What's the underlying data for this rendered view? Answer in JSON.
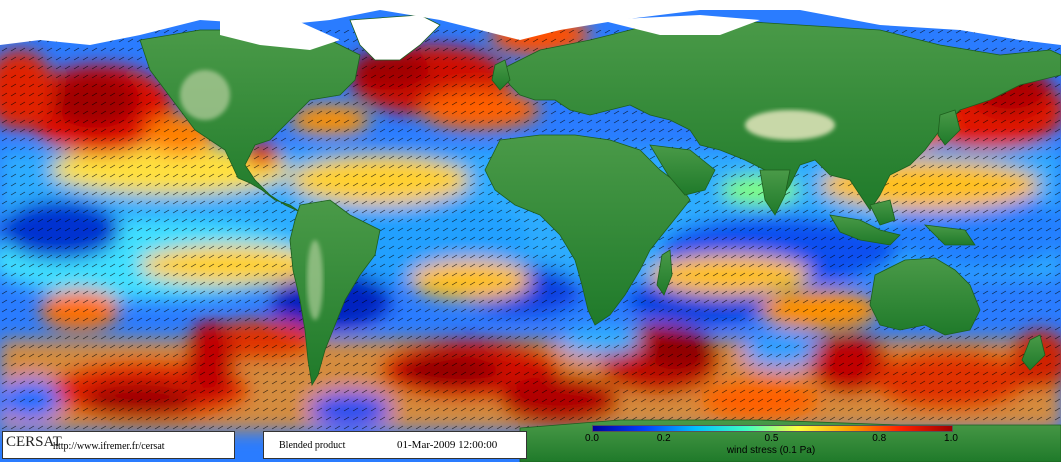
{
  "logo": {
    "name": "CERSAT",
    "url": "http://www.ifremer.fr/cersat"
  },
  "product": {
    "label": "Blended product",
    "date": "01-Mar-2009 12:00:00"
  },
  "colorbar": {
    "ticks": [
      "0.0",
      "0.2",
      "0.5",
      "0.8",
      "1.0"
    ],
    "tick_values": [
      0.0,
      0.2,
      0.5,
      0.8,
      1.0
    ],
    "min": 0.0,
    "max": 1.0,
    "label": "wind stress (0.1 Pa)",
    "colors": [
      "#0000a0",
      "#0040ff",
      "#00c0ff",
      "#40ffc0",
      "#ffff40",
      "#ffa000",
      "#ff2000",
      "#a00000"
    ]
  },
  "map": {
    "ocean_low_color": "#1030e0",
    "ocean_mid_color": "#30c8ff",
    "ocean_high_color": "#ffd020",
    "ocean_max_color": "#c00000",
    "land_color": "#2f8a2f",
    "land_high_color": "#c8d8a8",
    "ice_color": "#ffffff"
  }
}
